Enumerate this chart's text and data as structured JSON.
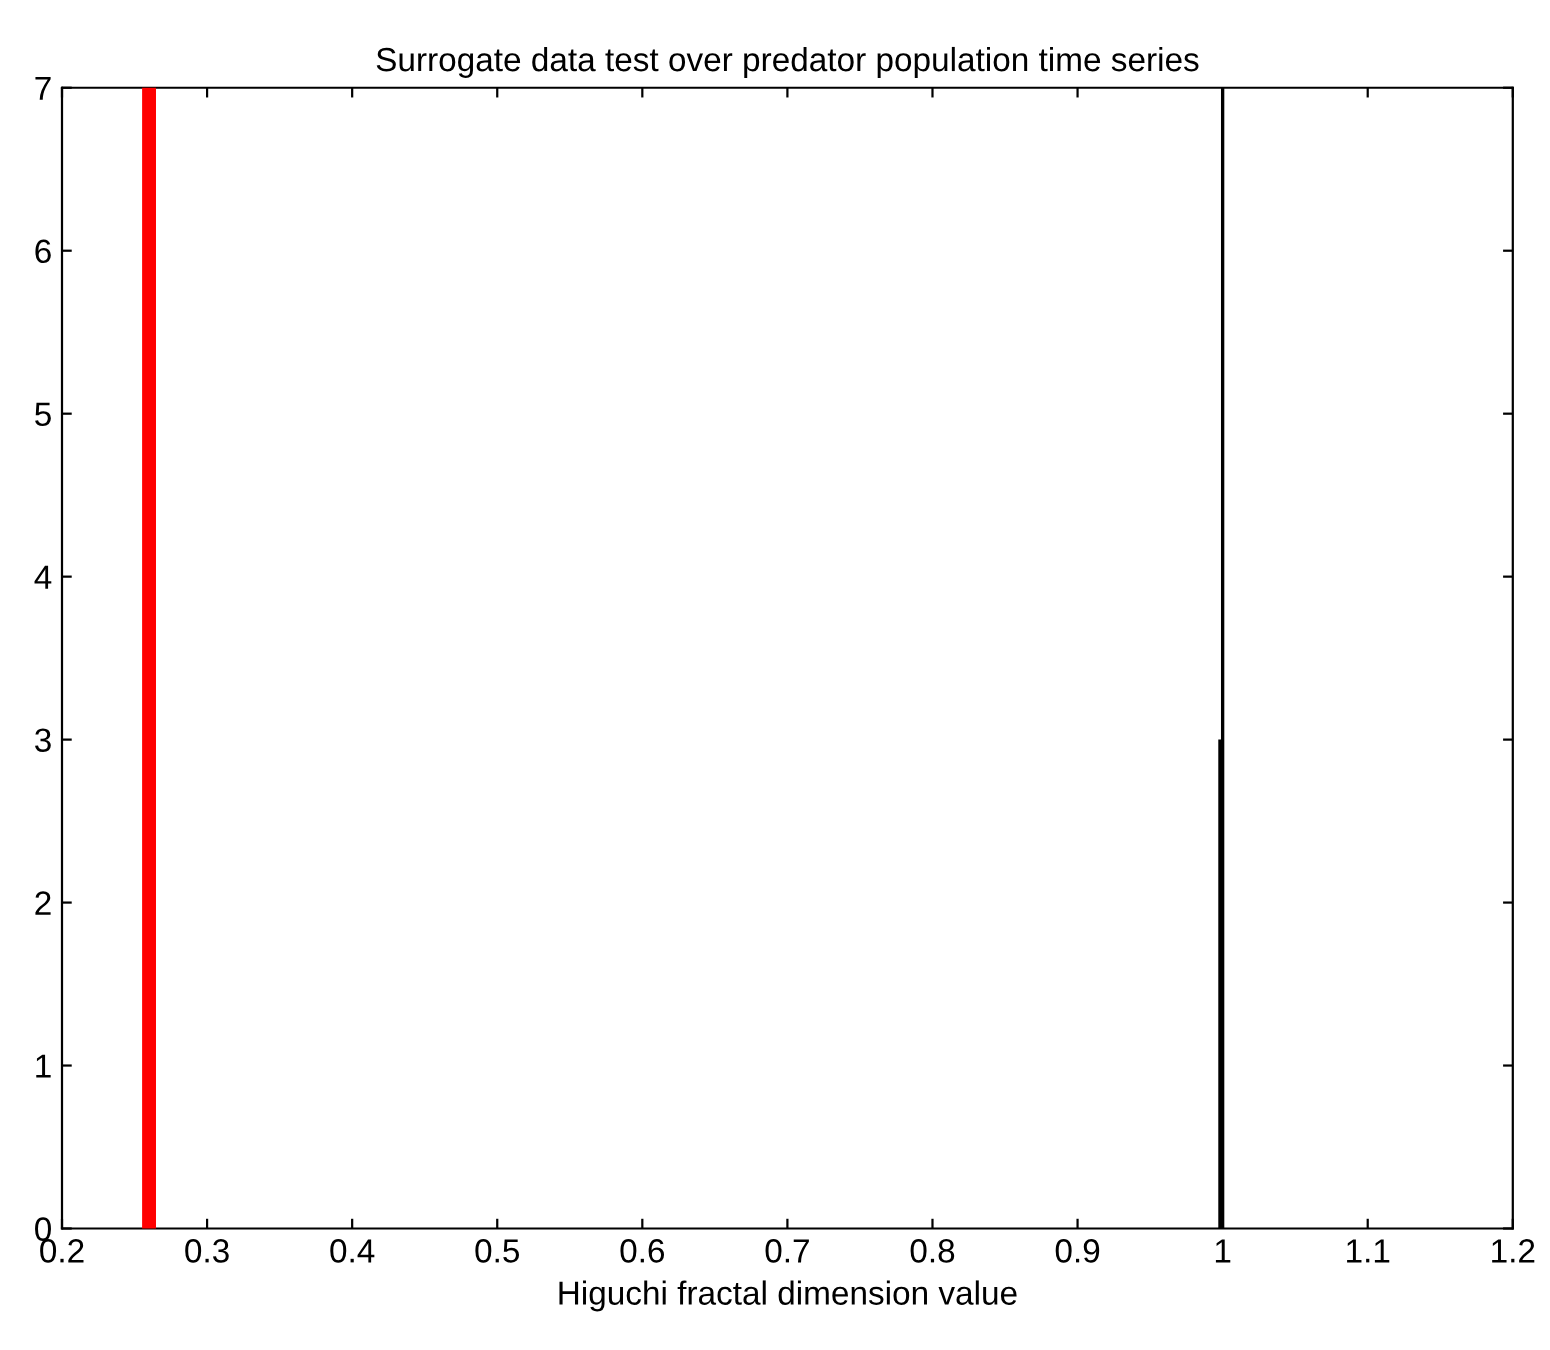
{
  "chart_data": {
    "type": "histogram",
    "title": "Surrogate data test over predator population time series",
    "xlabel": "Higuchi fractal dimension value",
    "bins": [
      0.997,
      1.0
    ],
    "values": [
      3
    ],
    "color": "#000000",
    "ref_lines": [
      {
        "axis": "x",
        "value": 0.26,
        "color": "#ff0000"
      },
      {
        "axis": "x",
        "value": 1.0,
        "color": "#000000"
      }
    ],
    "xlim": [
      0.2,
      1.2
    ],
    "xticks": [
      0.2,
      0.3,
      0.4,
      0.5,
      0.6,
      0.7,
      0.8,
      0.9,
      1,
      1.1,
      1.2
    ],
    "ylim": [
      0,
      7
    ],
    "yticks": [
      0,
      1,
      2,
      3,
      4,
      5,
      6,
      7
    ],
    "grid": false
  }
}
